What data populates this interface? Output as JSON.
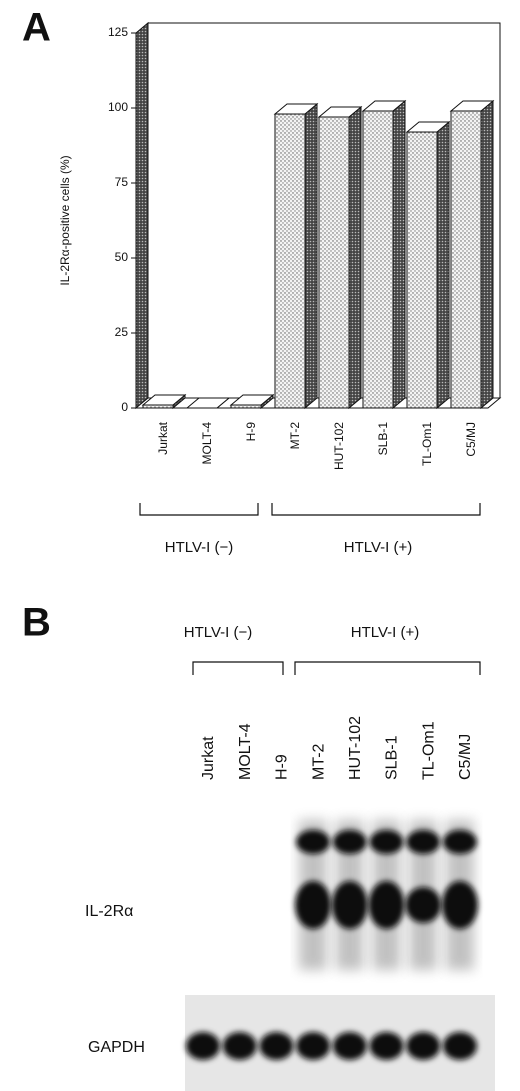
{
  "panel_labels": [
    "A",
    "B"
  ],
  "chart_data": {
    "type": "bar3d",
    "y_label": "IL-2Rα-positive cells (%)",
    "categories": [
      "Jurkat",
      "MOLT-4",
      "H-9",
      "MT-2",
      "HUT-102",
      "SLB-1",
      "TL-Om1",
      "C5/MJ"
    ],
    "values": [
      1,
      0,
      1,
      98,
      97,
      99,
      92,
      99
    ],
    "groups": [
      "HTLV-I (−)",
      "HTLV-I (+)"
    ],
    "ylim": [
      0,
      125
    ],
    "yticks": [
      0,
      25,
      50,
      75,
      100,
      125
    ]
  },
  "blot": {
    "groups": [
      "HTLV-I (−)",
      "HTLV-I (+)"
    ],
    "lanes": [
      "Jurkat",
      "MOLT-4",
      "H-9",
      "MT-2",
      "HUT-102",
      "SLB-1",
      "TL-Om1",
      "C5/MJ"
    ],
    "rows": [
      "IL-2Rα",
      "GAPDH"
    ]
  }
}
